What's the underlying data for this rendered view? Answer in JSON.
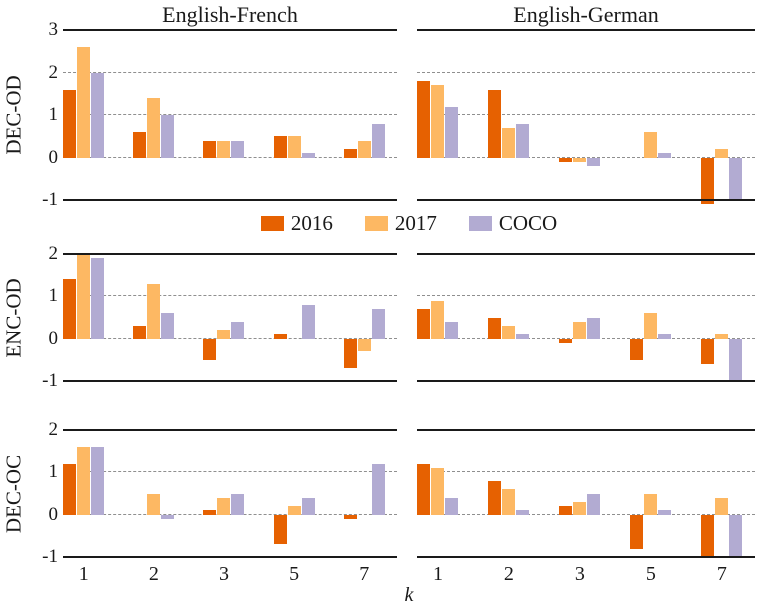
{
  "figure": {
    "column_titles": [
      "English-French",
      "English-German"
    ],
    "row_labels": [
      "DEC-OD",
      "ENC-OD",
      "DEC-OC"
    ],
    "xlabel": "k"
  },
  "legend": {
    "items": [
      {
        "label": "2016",
        "color": "#E66101"
      },
      {
        "label": "2017",
        "color": "#FDB863"
      },
      {
        "label": "COCO",
        "color": "#B2ABD2"
      }
    ]
  },
  "chart_data": {
    "type": "bar",
    "layout": "3 rows x 2 columns of grouped bar panels",
    "categories": [
      "1",
      "2",
      "3",
      "5",
      "7"
    ],
    "xlabel": "k",
    "series_names": [
      "2016",
      "2017",
      "COCO"
    ],
    "colors": {
      "2016": "#E66101",
      "2017": "#FDB863",
      "COCO": "#B2ABD2"
    },
    "grid": "horizontal dashed lines at integer ticks; solid top and bottom axis lines",
    "legend_position": "centered between first and second row",
    "panels": [
      {
        "row": "DEC-OD",
        "column": "English-French",
        "ylim": [
          -1,
          3
        ],
        "yticks": [
          3,
          2,
          1,
          0,
          -1
        ],
        "series": [
          {
            "name": "2016",
            "values": [
              1.6,
              0.6,
              0.4,
              0.5,
              0.2
            ]
          },
          {
            "name": "2017",
            "values": [
              2.6,
              1.4,
              0.4,
              0.5,
              0.4
            ]
          },
          {
            "name": "COCO",
            "values": [
              2.0,
              1.0,
              0.4,
              0.1,
              0.8
            ]
          }
        ]
      },
      {
        "row": "DEC-OD",
        "column": "English-German",
        "ylim": [
          -1,
          3
        ],
        "yticks": [
          3,
          2,
          1,
          0,
          -1
        ],
        "series": [
          {
            "name": "2016",
            "values": [
              1.8,
              1.6,
              -0.1,
              0,
              -1.1
            ]
          },
          {
            "name": "2017",
            "values": [
              1.7,
              0.7,
              -0.1,
              0.6,
              0.2
            ]
          },
          {
            "name": "COCO",
            "values": [
              1.2,
              0.8,
              -0.2,
              0.1,
              -1.0
            ]
          }
        ]
      },
      {
        "row": "ENC-OD",
        "column": "English-French",
        "ylim": [
          -1,
          2
        ],
        "yticks": [
          2,
          1,
          0,
          -1
        ],
        "series": [
          {
            "name": "2016",
            "values": [
              1.4,
              0.3,
              -0.5,
              0.1,
              -0.7
            ]
          },
          {
            "name": "2017",
            "values": [
              2.0,
              1.3,
              0.2,
              0,
              -0.3
            ]
          },
          {
            "name": "COCO",
            "values": [
              1.9,
              0.6,
              0.4,
              0.8,
              0.7
            ]
          }
        ]
      },
      {
        "row": "ENC-OD",
        "column": "English-German",
        "ylim": [
          -1,
          2
        ],
        "yticks": [
          2,
          1,
          0,
          -1
        ],
        "series": [
          {
            "name": "2016",
            "values": [
              0.7,
              0.5,
              -0.1,
              -0.5,
              -0.6
            ]
          },
          {
            "name": "2017",
            "values": [
              0.9,
              0.3,
              0.4,
              0.6,
              0.1
            ]
          },
          {
            "name": "COCO",
            "values": [
              0.4,
              0.1,
              0.5,
              0.1,
              -1.0
            ]
          }
        ]
      },
      {
        "row": "DEC-OC",
        "column": "English-French",
        "ylim": [
          -1,
          2
        ],
        "yticks": [
          2,
          1,
          0,
          -1
        ],
        "series": [
          {
            "name": "2016",
            "values": [
              1.2,
              0,
              0.1,
              -0.7,
              -0.1
            ]
          },
          {
            "name": "2017",
            "values": [
              1.6,
              0.5,
              0.4,
              0.2,
              0
            ]
          },
          {
            "name": "COCO",
            "values": [
              1.6,
              -0.1,
              0.5,
              0.4,
              1.2
            ]
          }
        ]
      },
      {
        "row": "DEC-OC",
        "column": "English-German",
        "ylim": [
          -1,
          2
        ],
        "yticks": [
          2,
          1,
          0,
          -1
        ],
        "series": [
          {
            "name": "2016",
            "values": [
              1.2,
              0.8,
              0.2,
              -0.8,
              -1.0
            ]
          },
          {
            "name": "2017",
            "values": [
              1.1,
              0.6,
              0.3,
              0.5,
              0.4
            ]
          },
          {
            "name": "COCO",
            "values": [
              0.4,
              0.1,
              0.5,
              0.1,
              -1.0
            ]
          }
        ]
      }
    ]
  }
}
